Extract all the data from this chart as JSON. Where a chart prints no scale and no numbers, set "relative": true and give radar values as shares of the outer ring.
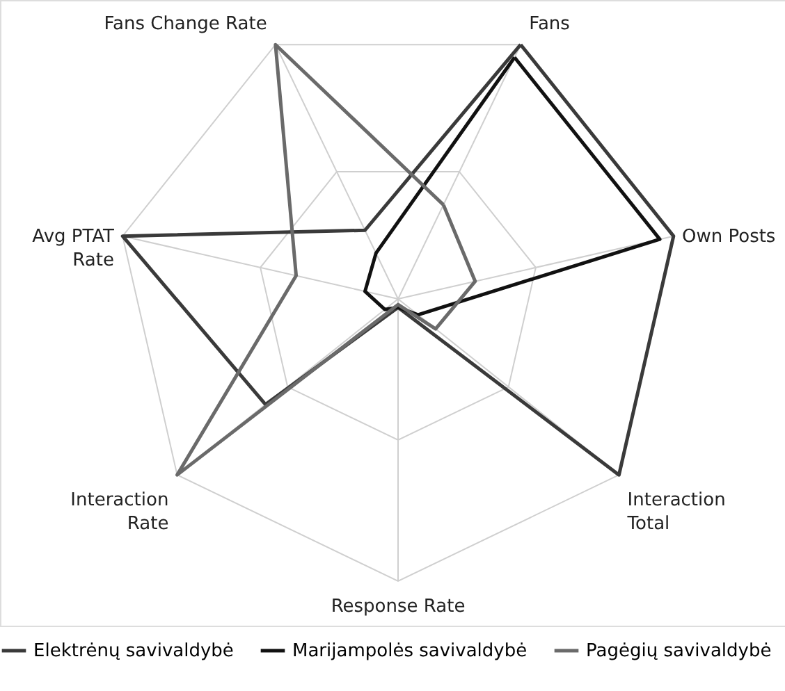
{
  "chart_data": {
    "type": "radar",
    "relative": true,
    "grid": true,
    "legend": "bottom",
    "categories": [
      "Fans",
      "Own Posts",
      "Interaction Total",
      "Response Rate",
      "Interaction Rate",
      "Avg PTAT Rate",
      "Fans Change Rate"
    ],
    "series": [
      {
        "name": "Elektrėnų savivaldybė",
        "color": "#3a3a3a",
        "values": [
          1.0,
          1.0,
          1.0,
          0.03,
          0.6,
          1.0,
          0.27
        ]
      },
      {
        "name": "Marijampolės savivaldybė",
        "color": "#111111",
        "values": [
          0.95,
          0.95,
          0.09,
          0.03,
          0.06,
          0.12,
          0.18
        ]
      },
      {
        "name": "Pagėgių savivaldybė",
        "color": "#6a6a6a",
        "values": [
          0.37,
          0.28,
          0.17,
          0.02,
          1.0,
          0.37,
          1.0
        ]
      }
    ]
  }
}
